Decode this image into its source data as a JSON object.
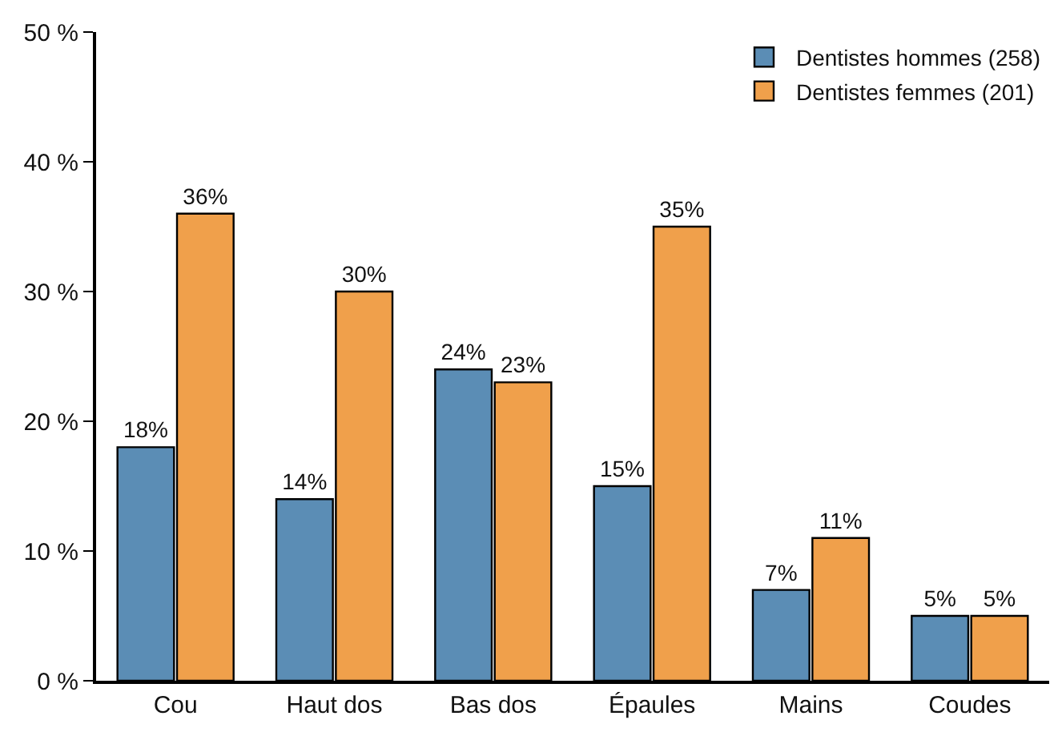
{
  "chart_data": {
    "type": "bar",
    "categories": [
      "Cou",
      "Haut dos",
      "Bas dos",
      "Épaules",
      "Mains",
      "Coudes"
    ],
    "series": [
      {
        "name": "Dentistes hommes (258)",
        "color": "#5b8db5",
        "values": [
          18,
          14,
          24,
          15,
          7,
          5
        ],
        "value_labels": [
          "18%",
          "14%",
          "24%",
          "15%",
          "7%",
          "5%"
        ]
      },
      {
        "name": "Dentistes femmes (201)",
        "color": "#f0a04b",
        "values": [
          36,
          30,
          23,
          35,
          11,
          5
        ],
        "value_labels": [
          "36%",
          "30%",
          "23%",
          "35%",
          "11%",
          "5%"
        ]
      }
    ],
    "ylim": [
      0,
      50
    ],
    "yticks": [
      {
        "value": 0,
        "label": "0 %"
      },
      {
        "value": 10,
        "label": "10 %"
      },
      {
        "value": 20,
        "label": "20 %"
      },
      {
        "value": 30,
        "label": "30 %"
      },
      {
        "value": 40,
        "label": "40 %"
      },
      {
        "value": 50,
        "label": "50 %"
      }
    ],
    "legend": "top right"
  }
}
